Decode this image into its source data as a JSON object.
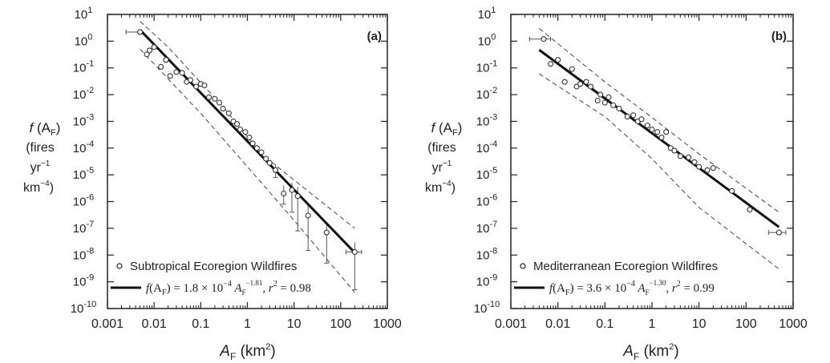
{
  "chart_data": [
    {
      "type": "scatter",
      "panel_label": "(a)",
      "xscale": "log",
      "yscale": "log",
      "xlim": [
        0.001,
        1000
      ],
      "ylim": [
        1e-10,
        10
      ],
      "xticks": [
        "0.001",
        "0.01",
        "0.1",
        "1",
        "10",
        "100",
        "1000"
      ],
      "yticks": [
        {
          "base": "10",
          "exp": "1"
        },
        {
          "base": "10",
          "exp": "0"
        },
        {
          "base": "10",
          "exp": "-1"
        },
        {
          "base": "10",
          "exp": "-2"
        },
        {
          "base": "10",
          "exp": "-3"
        },
        {
          "base": "10",
          "exp": "-4"
        },
        {
          "base": "10",
          "exp": "-5"
        },
        {
          "base": "10",
          "exp": "-6"
        },
        {
          "base": "10",
          "exp": "-7"
        },
        {
          "base": "10",
          "exp": "-8"
        },
        {
          "base": "10",
          "exp": "-9"
        },
        {
          "base": "10",
          "exp": "-10"
        }
      ],
      "xlabel": {
        "main": "A",
        "sub": "F",
        "unit": " (km",
        "unit_sup": "2",
        "unit_close": ")"
      },
      "ylabel": {
        "line1_main": "f",
        "line1_open": " (A",
        "line1_sub": "F",
        "line1_close": ")",
        "line2": "(fires",
        "line3": "yr",
        "line3_sup": "−1",
        "line4": "km",
        "line4_sup": "−4",
        "line4_close": ")"
      },
      "legend": {
        "marker_label": "Subtropical Ecoregion Wildfires",
        "fit_label": {
          "lhs": "f",
          "lhs_open": "(A",
          "lhs_sub": "F",
          "lhs_close": ")",
          "eq": " = 1.8 × 10",
          "eq_sup": "−4",
          "a": " A",
          "a_sub": "F",
          "a_sup": "−1.81",
          "r2": ",   r",
          "r2_sup": "2",
          "r2_val": " = 0.98"
        }
      },
      "fit": {
        "coefficient": 0.00018,
        "exponent": -1.81,
        "r2": 0.98,
        "x_range": [
          0.005,
          200
        ]
      },
      "band_upper": [
        [
          0.005,
          5.5
        ],
        [
          0.02,
          0.6
        ],
        [
          0.3,
          0.0035
        ],
        [
          2,
          6e-05
        ],
        [
          200,
          1e-07
        ]
      ],
      "band_lower": [
        [
          0.005,
          0.5
        ],
        [
          0.1,
          0.002
        ],
        [
          1,
          2e-05
        ],
        [
          10,
          2e-07
        ],
        [
          200,
          4e-10
        ]
      ],
      "points": [
        {
          "x": 0.005,
          "y": 2.2,
          "xerr": [
            0.0025,
            0.0055
          ]
        },
        {
          "x": 0.007,
          "y": 0.32
        },
        {
          "x": 0.008,
          "y": 0.45
        },
        {
          "x": 0.01,
          "y": 0.6
        },
        {
          "x": 0.014,
          "y": 0.11
        },
        {
          "x": 0.018,
          "y": 0.2
        },
        {
          "x": 0.022,
          "y": 0.05
        },
        {
          "x": 0.03,
          "y": 0.07
        },
        {
          "x": 0.04,
          "y": 0.065
        },
        {
          "x": 0.05,
          "y": 0.03
        },
        {
          "x": 0.06,
          "y": 0.035
        },
        {
          "x": 0.08,
          "y": 0.02
        },
        {
          "x": 0.1,
          "y": 0.025
        },
        {
          "x": 0.12,
          "y": 0.022
        },
        {
          "x": 0.15,
          "y": 0.008
        },
        {
          "x": 0.2,
          "y": 0.007
        },
        {
          "x": 0.25,
          "y": 0.005
        },
        {
          "x": 0.3,
          "y": 0.003
        },
        {
          "x": 0.4,
          "y": 0.002
        },
        {
          "x": 0.5,
          "y": 0.001
        },
        {
          "x": 0.6,
          "y": 0.0008
        },
        {
          "x": 0.7,
          "y": 0.0005
        },
        {
          "x": 0.9,
          "y": 0.0004
        },
        {
          "x": 1.1,
          "y": 0.00025
        },
        {
          "x": 1.3,
          "y": 0.00015
        },
        {
          "x": 1.6,
          "y": 0.0001
        },
        {
          "x": 2,
          "y": 7e-05
        },
        {
          "x": 2.5,
          "y": 4e-05
        },
        {
          "x": 3,
          "y": 2.8e-05
        },
        {
          "x": 4,
          "y": 1.5e-05,
          "yerr": [
            8e-06,
            2.5e-05
          ]
        },
        {
          "x": 6,
          "y": 2e-06,
          "yerr": [
            8e-07,
            4e-06
          ]
        },
        {
          "x": 9,
          "y": 2.7e-06,
          "yerr": [
            4e-07,
            5e-06
          ]
        },
        {
          "x": 12,
          "y": 1.6e-06,
          "yerr": [
            8e-08,
            3.5e-06
          ]
        },
        {
          "x": 20,
          "y": 3e-07,
          "yerr": [
            1.5e-08,
            7e-07
          ]
        },
        {
          "x": 50,
          "y": 7e-08,
          "yerr": [
            5e-09,
            1.5e-07
          ]
        },
        {
          "x": 200,
          "y": 1.3e-08,
          "xerr": [
            130,
            280
          ],
          "yerr": [
            5e-10,
            3e-08
          ]
        }
      ]
    },
    {
      "type": "scatter",
      "panel_label": "(b)",
      "xscale": "log",
      "yscale": "log",
      "xlim": [
        0.001,
        1000
      ],
      "ylim": [
        1e-10,
        10
      ],
      "xticks": [
        "0.001",
        "0.01",
        "0.1",
        "1",
        "10",
        "100",
        "1000"
      ],
      "yticks": [
        {
          "base": "10",
          "exp": "1"
        },
        {
          "base": "10",
          "exp": "0"
        },
        {
          "base": "10",
          "exp": "-1"
        },
        {
          "base": "10",
          "exp": "-2"
        },
        {
          "base": "10",
          "exp": "-3"
        },
        {
          "base": "10",
          "exp": "-4"
        },
        {
          "base": "10",
          "exp": "-5"
        },
        {
          "base": "10",
          "exp": "-6"
        },
        {
          "base": "10",
          "exp": "-7"
        },
        {
          "base": "10",
          "exp": "-8"
        },
        {
          "base": "10",
          "exp": "-9"
        },
        {
          "base": "10",
          "exp": "-10"
        }
      ],
      "xlabel": {
        "main": "A",
        "sub": "F",
        "unit": " (km",
        "unit_sup": "2",
        "unit_close": ")"
      },
      "ylabel": {
        "line1_main": "f",
        "line1_open": " (A",
        "line1_sub": "F",
        "line1_close": ")",
        "line2": "(fires",
        "line3": "yr",
        "line3_sup": "−1",
        "line4": "km",
        "line4_sup": "−4",
        "line4_close": ")"
      },
      "legend": {
        "marker_label": "Mediterranean Ecoregion Wildfires",
        "fit_label": {
          "lhs": "f",
          "lhs_open": "(A",
          "lhs_sub": "F",
          "lhs_close": ")",
          "eq": " = 3.6 × 10",
          "eq_sup": "−4",
          "a": " A",
          "a_sub": "F",
          "a_sup": "−1.30",
          "r2": ",   r",
          "r2_sup": "2",
          "r2_val": " = 0.99"
        }
      },
      "fit": {
        "coefficient": 0.00036,
        "exponent": -1.3,
        "r2": 0.99,
        "x_range": [
          0.004,
          500
        ]
      },
      "band_upper": [
        [
          0.004,
          3
        ],
        [
          0.1,
          0.03
        ],
        [
          1,
          0.0014
        ],
        [
          10,
          6e-05
        ],
        [
          500,
          4e-07
        ]
      ],
      "band_lower": [
        [
          0.004,
          0.06
        ],
        [
          0.1,
          0.0015
        ],
        [
          1,
          4e-05
        ],
        [
          10,
          6e-07
        ],
        [
          500,
          3e-09
        ]
      ],
      "points": [
        {
          "x": 0.005,
          "y": 1.2,
          "xerr": [
            0.0025,
            0.007
          ]
        },
        {
          "x": 0.007,
          "y": 0.14
        },
        {
          "x": 0.01,
          "y": 0.2
        },
        {
          "x": 0.014,
          "y": 0.03
        },
        {
          "x": 0.02,
          "y": 0.09
        },
        {
          "x": 0.025,
          "y": 0.02
        },
        {
          "x": 0.03,
          "y": 0.025
        },
        {
          "x": 0.04,
          "y": 0.03
        },
        {
          "x": 0.05,
          "y": 0.02
        },
        {
          "x": 0.07,
          "y": 0.006
        },
        {
          "x": 0.08,
          "y": 0.01
        },
        {
          "x": 0.1,
          "y": 0.005
        },
        {
          "x": 0.12,
          "y": 0.008
        },
        {
          "x": 0.15,
          "y": 0.004
        },
        {
          "x": 0.2,
          "y": 0.003
        },
        {
          "x": 0.3,
          "y": 0.0015
        },
        {
          "x": 0.4,
          "y": 0.0017
        },
        {
          "x": 0.5,
          "y": 0.001
        },
        {
          "x": 0.6,
          "y": 0.0012
        },
        {
          "x": 0.8,
          "y": 0.0007
        },
        {
          "x": 1,
          "y": 0.0005
        },
        {
          "x": 1.3,
          "y": 0.0004
        },
        {
          "x": 1.6,
          "y": 0.00025
        },
        {
          "x": 2,
          "y": 0.0004
        },
        {
          "x": 2.5,
          "y": 0.0001
        },
        {
          "x": 3,
          "y": 8e-05
        },
        {
          "x": 4,
          "y": 5e-05
        },
        {
          "x": 6,
          "y": 4.5e-05
        },
        {
          "x": 8,
          "y": 3e-05
        },
        {
          "x": 10,
          "y": 2e-05
        },
        {
          "x": 15,
          "y": 1.5e-05
        },
        {
          "x": 20,
          "y": 1.8e-05
        },
        {
          "x": 50,
          "y": 2.5e-06
        },
        {
          "x": 120,
          "y": 5e-07
        },
        {
          "x": 500,
          "y": 7e-08,
          "xerr": [
            300,
            700
          ]
        }
      ]
    }
  ]
}
